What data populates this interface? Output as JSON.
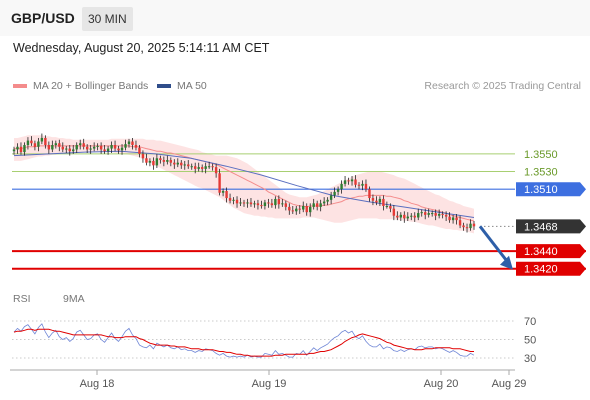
{
  "header": {
    "symbol": "GBP/USD",
    "timeframe": "30 MIN",
    "timestamp": "Wednesday, August 20, 2025 5:14:11 AM CET"
  },
  "legend": {
    "ma20": "MA 20 + Bollinger Bands",
    "ma50": "MA 50",
    "credit": "Research © 2025 Trading Central",
    "rsi": "RSI",
    "rsi_ma": "9MA"
  },
  "colors": {
    "bull": "#2e7d32",
    "bear": "#e53935",
    "ma20": "#f48c8c",
    "band": "#fde0e0",
    "ma50": "#5a6fc0",
    "resistance_green": "#a8cf72",
    "pivot_blue": "#3d6fe0",
    "support_red": "#e00000",
    "current": "#333333",
    "arrow": "#2e5fa8",
    "rsi_line": "#6f86d6",
    "rsi_ma_line": "#e00000"
  },
  "chart_data": [
    {
      "type": "candlestick",
      "title": "GBP/USD",
      "x_ticks": [
        "Aug 18",
        "Aug 19",
        "Aug 20",
        "Aug 29"
      ],
      "ylim": [
        1.3405,
        1.362
      ],
      "price_levels": [
        {
          "value": 1.355,
          "label": "1.3550",
          "kind": "resistance"
        },
        {
          "value": 1.353,
          "label": "1.3530",
          "kind": "resistance"
        },
        {
          "value": 1.351,
          "label": "1.3510",
          "kind": "pivot"
        },
        {
          "value": 1.3468,
          "label": "1.3468",
          "kind": "current"
        },
        {
          "value": 1.344,
          "label": "1.3440",
          "kind": "support"
        },
        {
          "value": 1.342,
          "label": "1.3420",
          "kind": "support"
        }
      ],
      "close": [
        1.3555,
        1.3558,
        1.3552,
        1.356,
        1.3565,
        1.3562,
        1.3558,
        1.3564,
        1.3568,
        1.356,
        1.3555,
        1.356,
        1.3562,
        1.3558,
        1.3555,
        1.3556,
        1.3553,
        1.3555,
        1.356,
        1.3562,
        1.3558,
        1.3555,
        1.3556,
        1.3558,
        1.3559,
        1.3555,
        1.3553,
        1.3556,
        1.356,
        1.3556,
        1.3554,
        1.3557,
        1.3561,
        1.3564,
        1.356,
        1.3557,
        1.355,
        1.3545,
        1.354,
        1.3542,
        1.3537,
        1.3545,
        1.3543,
        1.3541,
        1.3543,
        1.354,
        1.3538,
        1.354,
        1.3537,
        1.3538,
        1.3536,
        1.3536,
        1.3533,
        1.3535,
        1.3533,
        1.3536,
        1.3536,
        1.3535,
        1.3528,
        1.3506,
        1.3508,
        1.35,
        1.3497,
        1.3498,
        1.3494,
        1.3495,
        1.3494,
        1.3495,
        1.3493,
        1.3494,
        1.3492,
        1.3491,
        1.3495,
        1.3494,
        1.3492,
        1.3499,
        1.3493,
        1.3494,
        1.349,
        1.3486,
        1.3485,
        1.3488,
        1.3487,
        1.3491,
        1.3484,
        1.349,
        1.3494,
        1.349,
        1.3494,
        1.3496,
        1.3498,
        1.3503,
        1.3507,
        1.351,
        1.3516,
        1.352,
        1.3519,
        1.3521,
        1.3515,
        1.3514,
        1.3516,
        1.351,
        1.35,
        1.3497,
        1.3495,
        1.3499,
        1.3491,
        1.3491,
        1.3488,
        1.348,
        1.3478,
        1.3481,
        1.3477,
        1.3479,
        1.348,
        1.3478,
        1.3483,
        1.3484,
        1.3481,
        1.3483,
        1.3483,
        1.348,
        1.3482,
        1.3481,
        1.3479,
        1.3475,
        1.3478,
        1.3475,
        1.3469,
        1.3467,
        1.3466,
        1.3471,
        1.3468
      ],
      "ma20": [
        1.3556,
        1.3556,
        1.3556,
        1.3557,
        1.3558,
        1.3558,
        1.3558,
        1.3559,
        1.3559,
        1.3559,
        1.3559,
        1.3559,
        1.3559,
        1.3559,
        1.3559,
        1.3559,
        1.3559,
        1.3559,
        1.3559,
        1.3559,
        1.3559,
        1.3559,
        1.3559,
        1.3559,
        1.3559,
        1.3559,
        1.3559,
        1.3559,
        1.3559,
        1.3559,
        1.3559,
        1.3559,
        1.3559,
        1.3559,
        1.3558,
        1.3558,
        1.3558,
        1.3557,
        1.3556,
        1.3555,
        1.3554,
        1.3553,
        1.3553,
        1.3552,
        1.3551,
        1.3551,
        1.355,
        1.3549,
        1.3548,
        1.3547,
        1.3546,
        1.3545,
        1.3544,
        1.3543,
        1.3542,
        1.3541,
        1.354,
        1.3539,
        1.3538,
        1.3536,
        1.3534,
        1.3532,
        1.353,
        1.3528,
        1.3526,
        1.3524,
        1.3522,
        1.352,
        1.3518,
        1.3516,
        1.3514,
        1.3512,
        1.351,
        1.3507,
        1.3505,
        1.3503,
        1.3501,
        1.3499,
        1.3497,
        1.3495,
        1.3493,
        1.3492,
        1.3491,
        1.3491,
        1.349,
        1.3491,
        1.3491,
        1.3491,
        1.3491,
        1.3492,
        1.3492,
        1.3493,
        1.3494,
        1.3495,
        1.3496,
        1.3498,
        1.3499,
        1.35,
        1.3501,
        1.3502,
        1.3502,
        1.3503,
        1.3503,
        1.3503,
        1.3503,
        1.3503,
        1.3503,
        1.3502,
        1.3502,
        1.3501,
        1.35,
        1.3499,
        1.3497,
        1.3496,
        1.3494,
        1.3493,
        1.3492,
        1.349,
        1.3489,
        1.3488,
        1.3487,
        1.3486,
        1.3485,
        1.3484,
        1.3483,
        1.3481,
        1.348,
        1.3479,
        1.3478,
        1.3477,
        1.3476,
        1.3475,
        1.3474
      ],
      "bb_upper": [
        1.3568,
        1.3568,
        1.3569,
        1.357,
        1.3571,
        1.3571,
        1.3571,
        1.3571,
        1.3571,
        1.357,
        1.357,
        1.3569,
        1.3569,
        1.3568,
        1.3568,
        1.3567,
        1.3567,
        1.3566,
        1.3566,
        1.3566,
        1.3566,
        1.3566,
        1.3566,
        1.3566,
        1.3566,
        1.3566,
        1.3566,
        1.3566,
        1.3567,
        1.3567,
        1.3567,
        1.3567,
        1.3567,
        1.3567,
        1.3567,
        1.3567,
        1.3567,
        1.3567,
        1.3566,
        1.3566,
        1.3566,
        1.3565,
        1.3565,
        1.3564,
        1.3563,
        1.3562,
        1.3561,
        1.356,
        1.3559,
        1.3558,
        1.3557,
        1.3556,
        1.3555,
        1.3554,
        1.3552,
        1.3551,
        1.355,
        1.3549,
        1.3548,
        1.3548,
        1.3548,
        1.3548,
        1.3547,
        1.3546,
        1.3545,
        1.3543,
        1.3541,
        1.3539,
        1.3536,
        1.3533,
        1.353,
        1.3527,
        1.3524,
        1.3521,
        1.3518,
        1.3515,
        1.3512,
        1.3509,
        1.3506,
        1.3504,
        1.3503,
        1.3502,
        1.3501,
        1.3501,
        1.3501,
        1.3502,
        1.3503,
        1.3504,
        1.3506,
        1.3508,
        1.351,
        1.3512,
        1.3514,
        1.3516,
        1.3518,
        1.352,
        1.3522,
        1.3524,
        1.3526,
        1.3527,
        1.3528,
        1.3529,
        1.353,
        1.353,
        1.353,
        1.353,
        1.3529,
        1.3528,
        1.3527,
        1.3526,
        1.3524,
        1.3523,
        1.3522,
        1.352,
        1.3518,
        1.3516,
        1.3514,
        1.3512,
        1.351,
        1.3508,
        1.3506,
        1.3504,
        1.3503,
        1.3501,
        1.3499,
        1.3497,
        1.3496,
        1.3494,
        1.3493,
        1.3491,
        1.349,
        1.3489,
        1.3488
      ],
      "bb_lower": [
        1.3542,
        1.3542,
        1.3542,
        1.3543,
        1.3544,
        1.3545,
        1.3546,
        1.3547,
        1.3547,
        1.3548,
        1.3548,
        1.3549,
        1.3549,
        1.355,
        1.355,
        1.3551,
        1.3551,
        1.3552,
        1.3552,
        1.3552,
        1.3552,
        1.3552,
        1.3552,
        1.3552,
        1.3552,
        1.3552,
        1.3552,
        1.3552,
        1.3552,
        1.3551,
        1.3551,
        1.355,
        1.355,
        1.3549,
        1.3548,
        1.3547,
        1.3546,
        1.3544,
        1.3542,
        1.354,
        1.3538,
        1.3536,
        1.3534,
        1.3532,
        1.353,
        1.3528,
        1.3526,
        1.3524,
        1.3522,
        1.352,
        1.3518,
        1.3516,
        1.3514,
        1.3512,
        1.3511,
        1.3509,
        1.3507,
        1.3505,
        1.3503,
        1.3501,
        1.3498,
        1.3495,
        1.3492,
        1.3489,
        1.3487,
        1.3485,
        1.3483,
        1.3482,
        1.3481,
        1.348,
        1.348,
        1.3479,
        1.3479,
        1.3478,
        1.3478,
        1.3477,
        1.3477,
        1.3477,
        1.3477,
        1.3477,
        1.3477,
        1.3477,
        1.3477,
        1.3478,
        1.3478,
        1.3478,
        1.3478,
        1.3477,
        1.3476,
        1.3475,
        1.3474,
        1.3473,
        1.3472,
        1.3472,
        1.3472,
        1.3473,
        1.3474,
        1.3475,
        1.3476,
        1.3477,
        1.3477,
        1.3477,
        1.3477,
        1.3477,
        1.3477,
        1.3476,
        1.3476,
        1.3476,
        1.3476,
        1.3476,
        1.3475,
        1.3475,
        1.3474,
        1.3474,
        1.3473,
        1.3473,
        1.3472,
        1.3471,
        1.347,
        1.3469,
        1.3469,
        1.3468,
        1.3467,
        1.3466,
        1.3465,
        1.3465,
        1.3464,
        1.3464,
        1.3463,
        1.3463,
        1.3462,
        1.3461,
        1.346
      ],
      "ma50_points": [
        [
          0,
          1.3548
        ],
        [
          13,
          1.355
        ],
        [
          26,
          1.3552
        ],
        [
          39,
          1.3553
        ],
        [
          52,
          1.355
        ],
        [
          65,
          1.3545
        ],
        [
          78,
          1.3536
        ],
        [
          91,
          1.3526
        ],
        [
          104,
          1.3514
        ],
        [
          117,
          1.3503
        ],
        [
          130,
          1.3496
        ],
        [
          143,
          1.349
        ],
        [
          156,
          1.3484
        ],
        [
          169,
          1.3478
        ]
      ],
      "forecast_arrow": {
        "from": 1.3468,
        "to": 1.342
      },
      "last_price_label": "1.3468"
    },
    {
      "type": "line",
      "title": "RSI",
      "ylim": [
        30,
        70
      ],
      "yticks": [
        70,
        50,
        30
      ],
      "series": [
        {
          "name": "RSI",
          "values": [
            58,
            62,
            59,
            64,
            66,
            61,
            56,
            63,
            67,
            58,
            52,
            57,
            60,
            53,
            50,
            52,
            48,
            51,
            58,
            60,
            55,
            50,
            51,
            55,
            56,
            50,
            47,
            52,
            57,
            51,
            48,
            53,
            59,
            62,
            55,
            51,
            44,
            42,
            41,
            44,
            40,
            46,
            44,
            42,
            44,
            41,
            40,
            42,
            39,
            40,
            38,
            38,
            36,
            38,
            37,
            40,
            39,
            38,
            35,
            33,
            35,
            32,
            31,
            32,
            31,
            32,
            31,
            33,
            31,
            32,
            31,
            31,
            35,
            34,
            33,
            38,
            34,
            35,
            33,
            31,
            31,
            35,
            34,
            38,
            33,
            37,
            41,
            38,
            41,
            43,
            45,
            49,
            52,
            54,
            58,
            60,
            57,
            59,
            53,
            51,
            54,
            48,
            44,
            42,
            42,
            45,
            40,
            42,
            41,
            38,
            37,
            39,
            37,
            39,
            40,
            39,
            42,
            43,
            41,
            42,
            42,
            40,
            41,
            40,
            38,
            36,
            38,
            36,
            33,
            32,
            32,
            35,
            33
          ]
        },
        {
          "name": "9MA",
          "values": [
            58,
            59,
            59,
            60,
            61,
            61,
            60,
            61,
            61,
            61,
            61,
            60,
            59,
            59,
            58,
            57,
            56,
            55,
            55,
            55,
            55,
            55,
            55,
            55,
            55,
            55,
            54,
            53,
            53,
            52,
            52,
            52,
            53,
            53,
            53,
            53,
            51,
            50,
            48,
            46,
            45,
            44,
            44,
            44,
            44,
            43,
            43,
            42,
            42,
            42,
            41,
            40,
            40,
            40,
            39,
            39,
            39,
            39,
            38,
            37,
            37,
            36,
            36,
            35,
            34,
            34,
            33,
            33,
            32,
            32,
            32,
            32,
            32,
            32,
            32,
            33,
            33,
            33,
            34,
            34,
            34,
            34,
            34,
            34,
            34,
            35,
            35,
            36,
            37,
            37,
            38,
            39,
            41,
            43,
            45,
            48,
            50,
            52,
            53,
            55,
            56,
            55,
            54,
            53,
            52,
            51,
            49,
            47,
            46,
            44,
            43,
            42,
            41,
            40,
            40,
            39,
            39,
            39,
            40,
            40,
            40,
            41,
            41,
            41,
            41,
            41,
            40,
            40,
            40,
            39,
            38,
            37,
            37
          ]
        }
      ]
    }
  ]
}
